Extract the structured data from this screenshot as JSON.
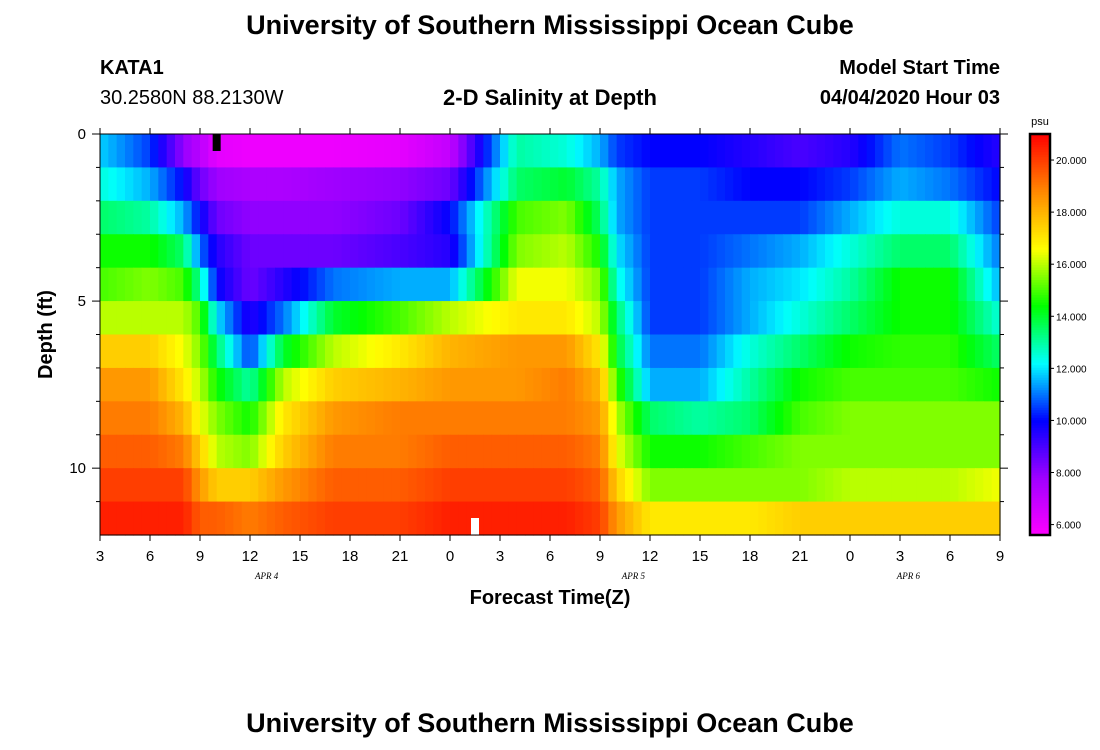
{
  "header": {
    "title": "University of Southern Mississippi Ocean Cube",
    "station_id": "KATA1",
    "coordinates": "30.2580N 88.2130W",
    "plot_title": "2-D Salinity at Depth",
    "model_start_label": "Model Start Time",
    "model_start_value": "04/04/2020 Hour 03"
  },
  "footer": {
    "title": "University of Southern Mississippi Ocean Cube"
  },
  "colors": {
    "frame": "#000000",
    "marker_top": "#000000",
    "marker_bottom": "#ffffff"
  },
  "chart_data": {
    "type": "heatmap",
    "title": "2-D Salinity at Depth",
    "xlabel": "Forecast Time(Z)",
    "ylabel": "Depth (ft)",
    "x_unit": "hours since 2020-04-04 03Z",
    "xlim": [
      0,
      54
    ],
    "ylim": [
      0,
      12
    ],
    "x_ticks": [
      0,
      3,
      6,
      9,
      12,
      15,
      18,
      21,
      24,
      27,
      30,
      33,
      36,
      39,
      42,
      45,
      48,
      51,
      54
    ],
    "x_tick_labels": [
      "3",
      "6",
      "9",
      "12",
      "15",
      "18",
      "21",
      "0",
      "3",
      "6",
      "9",
      "12",
      "15",
      "18",
      "21",
      "0",
      "3",
      "6",
      "9"
    ],
    "day_labels": [
      {
        "x": 10,
        "text": "APR 4"
      },
      {
        "x": 32,
        "text": "APR 5"
      },
      {
        "x": 48.5,
        "text": "APR 6"
      }
    ],
    "y_major_ticks": [
      0,
      5,
      10
    ],
    "y_major_labels": [
      "0",
      "5",
      "10"
    ],
    "y_minor_ticks": [
      1,
      2,
      3,
      4,
      6,
      7,
      8,
      9,
      11
    ],
    "colorbar": {
      "unit": "psu",
      "vmin": 5.6,
      "vmax": 21.0,
      "ticks": [
        6,
        8,
        10,
        12,
        14,
        16,
        18,
        20
      ],
      "tick_labels": [
        "6.000",
        "8.000",
        "10.000",
        "12.000",
        "14.000",
        "16.000",
        "18.000",
        "20.000"
      ],
      "colormap": [
        "#ff00ff",
        "#a000ff",
        "#0000ff",
        "#00ffff",
        "#00ff00",
        "#ffff00",
        "#ff8800",
        "#ff0000"
      ]
    },
    "depth_levels_ft": [
      0.5,
      1.5,
      2.5,
      3.5,
      4.5,
      5.5,
      6.5,
      7.5,
      8.5,
      9.5,
      10.5,
      11.5
    ],
    "time_knots_hours": [
      0,
      3,
      5,
      6,
      7,
      9,
      11,
      14,
      18,
      21,
      25,
      28,
      30,
      31,
      33,
      36,
      39,
      42,
      45,
      48,
      51,
      54
    ],
    "salinity_psu": [
      [
        11.8,
        10.5,
        8.0,
        7.2,
        6.2,
        6.0,
        6.0,
        6.0,
        6.2,
        7.0,
        13.0,
        12.5,
        11.5,
        10.5,
        10.0,
        10.0,
        9.5,
        9.0,
        9.5,
        11.0,
        10.5,
        9.5
      ],
      [
        12.5,
        11.5,
        10.0,
        8.5,
        7.8,
        7.5,
        7.5,
        7.8,
        8.0,
        8.5,
        13.5,
        14.0,
        13.0,
        11.5,
        10.5,
        10.5,
        10.0,
        10.0,
        10.5,
        11.5,
        11.0,
        10.0
      ],
      [
        13.5,
        13.0,
        11.5,
        10.0,
        8.5,
        8.0,
        8.0,
        8.0,
        8.5,
        10.0,
        15.0,
        15.5,
        13.5,
        11.5,
        10.5,
        10.5,
        10.5,
        10.5,
        11.5,
        12.5,
        12.5,
        10.5
      ],
      [
        14.5,
        14.5,
        13.5,
        11.0,
        9.5,
        8.5,
        8.5,
        8.5,
        9.0,
        9.5,
        15.5,
        16.0,
        14.5,
        12.0,
        10.5,
        10.5,
        11.0,
        11.5,
        12.5,
        13.5,
        13.5,
        11.0
      ],
      [
        15.0,
        15.5,
        15.0,
        13.0,
        10.0,
        8.5,
        9.5,
        11.0,
        11.5,
        11.5,
        16.5,
        16.5,
        15.5,
        12.5,
        10.5,
        10.5,
        11.5,
        12.0,
        13.0,
        14.5,
        14.5,
        11.5
      ],
      [
        16.0,
        16.0,
        16.0,
        15.0,
        12.0,
        9.5,
        11.0,
        14.0,
        15.0,
        16.0,
        17.0,
        17.0,
        16.0,
        13.5,
        10.5,
        10.5,
        11.5,
        12.5,
        13.5,
        14.5,
        14.5,
        12.5
      ],
      [
        17.5,
        17.5,
        16.5,
        15.5,
        13.5,
        10.5,
        14.0,
        16.0,
        17.0,
        18.0,
        18.5,
        18.5,
        17.0,
        14.0,
        11.0,
        11.0,
        12.5,
        13.5,
        14.5,
        14.8,
        14.8,
        13.5
      ],
      [
        18.5,
        18.5,
        17.0,
        16.0,
        14.5,
        13.0,
        16.0,
        17.5,
        18.0,
        18.5,
        18.5,
        19.0,
        18.0,
        15.0,
        11.5,
        11.5,
        13.0,
        14.5,
        15.0,
        15.0,
        15.0,
        14.5
      ],
      [
        19.0,
        19.0,
        18.0,
        16.5,
        15.5,
        14.5,
        17.0,
        18.5,
        19.0,
        19.0,
        19.0,
        19.0,
        18.5,
        16.0,
        13.5,
        13.0,
        13.5,
        15.0,
        15.5,
        15.5,
        15.5,
        15.5
      ],
      [
        19.5,
        19.5,
        19.0,
        17.5,
        16.0,
        15.5,
        17.5,
        19.0,
        19.0,
        19.5,
        19.5,
        19.5,
        19.0,
        16.5,
        14.5,
        14.5,
        15.0,
        15.5,
        15.5,
        15.5,
        15.5,
        15.5
      ],
      [
        20.0,
        20.0,
        20.0,
        18.5,
        17.5,
        17.5,
        18.5,
        19.5,
        19.5,
        20.0,
        20.0,
        20.0,
        19.5,
        17.5,
        15.5,
        15.5,
        15.5,
        15.5,
        16.0,
        16.0,
        16.0,
        16.5
      ],
      [
        20.5,
        20.5,
        20.5,
        19.5,
        19.5,
        19.0,
        19.5,
        20.0,
        20.0,
        20.5,
        20.5,
        20.5,
        20.0,
        18.5,
        17.0,
        17.0,
        17.0,
        17.5,
        17.5,
        17.5,
        17.5,
        17.5
      ]
    ],
    "markers": [
      {
        "name": "surface-marker",
        "x_hours": 7.0,
        "depth_ft": 0.0,
        "color": "#000000"
      },
      {
        "name": "bottom-marker",
        "x_hours": 22.5,
        "depth_ft": 12.0,
        "color": "#ffffff"
      }
    ]
  }
}
